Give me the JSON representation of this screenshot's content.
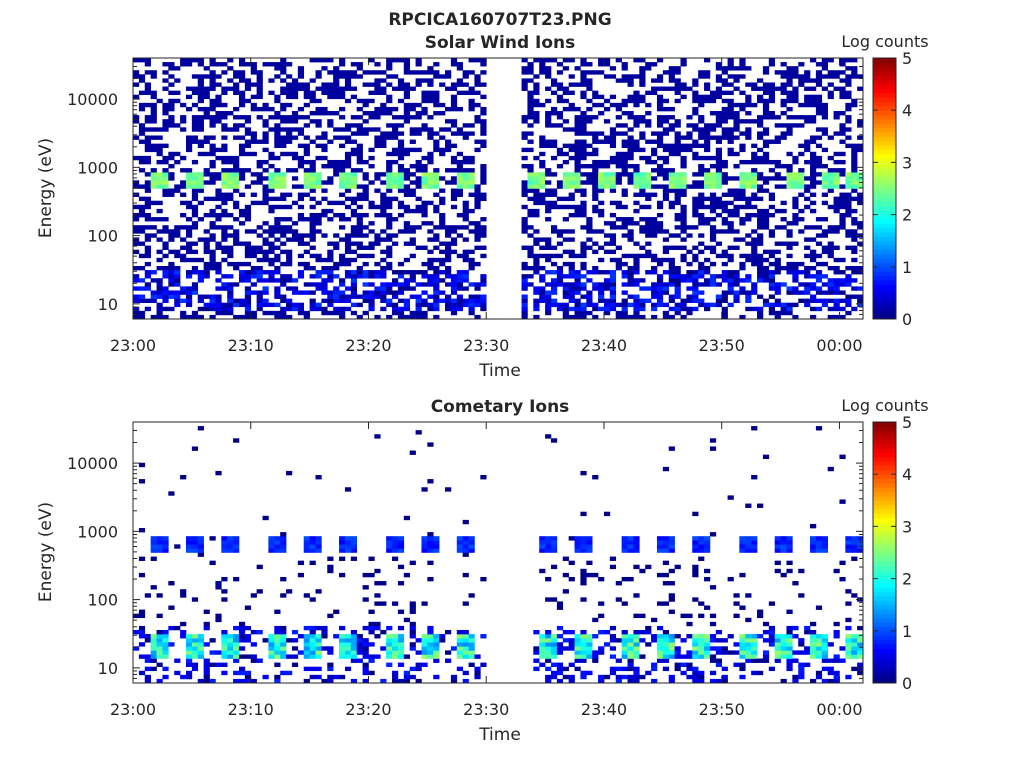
{
  "figure": {
    "title": "RPCICA160707T23.PNG"
  },
  "chart_data": [
    {
      "type": "heatmap",
      "title": "Solar Wind Ions",
      "xlabel": "Time",
      "ylabel": "Energy (eV)",
      "x_range": [
        "23:00",
        "00:02"
      ],
      "x_ticks": [
        "23:00",
        "23:10",
        "23:20",
        "23:30",
        "23:40",
        "23:50",
        "00:00"
      ],
      "y_scale": "log",
      "y_range": [
        6,
        40000
      ],
      "y_ticks": [
        "10",
        "100",
        "1000",
        "10000"
      ],
      "colorbar": {
        "label": "Log counts",
        "min": 0,
        "max": 5,
        "ticks": [
          "0",
          "1",
          "2",
          "3",
          "4",
          "5"
        ],
        "colormap": "jet"
      },
      "data_gaps": [
        [
          "23:30",
          "23:33"
        ]
      ],
      "features": {
        "peak_energy_eV": 650,
        "peak_log_counts": 2.7,
        "peak_times": [
          "23:02",
          "23:05",
          "23:08",
          "23:12",
          "23:15",
          "23:18",
          "23:22",
          "23:25",
          "23:28",
          "23:34",
          "23:37",
          "23:40",
          "23:43",
          "23:46",
          "23:49",
          "23:52",
          "23:56",
          "23:59",
          "00:01"
        ],
        "low_energy_band_eV": [
          8,
          30
        ],
        "low_energy_log_counts": 0.9,
        "background_log_counts": 0.15
      }
    },
    {
      "type": "heatmap",
      "title": "Cometary Ions",
      "xlabel": "Time",
      "ylabel": "Energy (eV)",
      "x_range": [
        "23:00",
        "00:02"
      ],
      "x_ticks": [
        "23:00",
        "23:10",
        "23:20",
        "23:30",
        "23:40",
        "23:50",
        "00:00"
      ],
      "y_scale": "log",
      "y_range": [
        6,
        40000
      ],
      "y_ticks": [
        "10",
        "100",
        "1000",
        "10000"
      ],
      "colorbar": {
        "label": "Log counts",
        "min": 0,
        "max": 5,
        "ticks": [
          "0",
          "1",
          "2",
          "3",
          "4",
          "5"
        ],
        "colormap": "jet"
      },
      "data_gaps": [
        [
          "23:30",
          "23:34"
        ]
      ],
      "features": {
        "peak_energy_eV": 650,
        "peak_log_counts": 1.0,
        "low_energy_peak_eV": 20,
        "low_energy_peak_log_counts": 2.6,
        "peak_times": [
          "23:02",
          "23:05",
          "23:08",
          "23:12",
          "23:15",
          "23:18",
          "23:22",
          "23:25",
          "23:28",
          "23:35",
          "23:38",
          "23:42",
          "23:45",
          "23:48",
          "23:52",
          "23:55",
          "23:58",
          "00:01"
        ],
        "background_log_counts": 0.05
      }
    }
  ]
}
